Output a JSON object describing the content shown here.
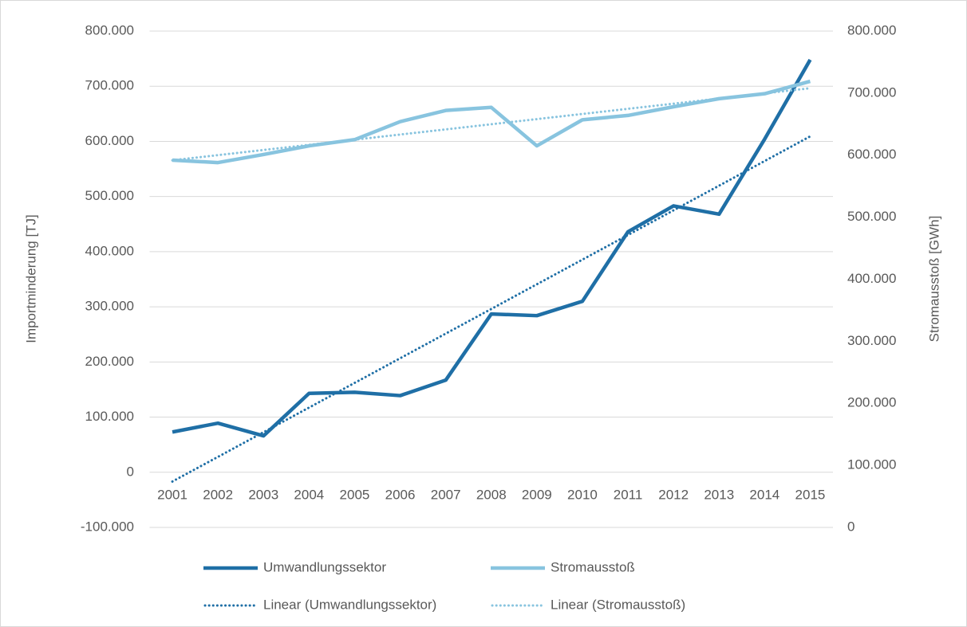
{
  "chart_data": {
    "type": "line",
    "categories": [
      "2001",
      "2002",
      "2003",
      "2004",
      "2005",
      "2006",
      "2007",
      "2008",
      "2009",
      "2010",
      "2011",
      "2012",
      "2013",
      "2014",
      "2015"
    ],
    "y_label": "Importminderung [TJ]",
    "y2_label": "Stromausstoß [GWh]",
    "ylim": [
      -100000,
      800000
    ],
    "yticks": [
      {
        "value": -100000,
        "label": "-100.000"
      },
      0,
      {
        "value": 100000,
        "label": "100.000"
      },
      {
        "value": 200000,
        "label": "200.000"
      },
      {
        "value": 300000,
        "label": "300.000"
      },
      {
        "value": 400000,
        "label": "400.000"
      },
      {
        "value": 500000,
        "label": "500.000"
      },
      {
        "value": 600000,
        "label": "600.000"
      },
      {
        "value": 700000,
        "label": "700.000"
      },
      {
        "value": 800000,
        "label": "800.000"
      }
    ],
    "y2lim": [
      0,
      800000
    ],
    "y2ticks": [
      0,
      {
        "value": 100000,
        "label": "100.000"
      },
      {
        "value": 200000,
        "label": "200.000"
      },
      {
        "value": 300000,
        "label": "300.000"
      },
      {
        "value": 400000,
        "label": "400.000"
      },
      {
        "value": 500000,
        "label": "500.000"
      },
      {
        "value": 600000,
        "label": "600.000"
      },
      {
        "value": 700000,
        "label": "700.000"
      },
      {
        "value": 800000,
        "label": "800.000"
      }
    ],
    "grid": true,
    "legend": "bottom",
    "series": [
      {
        "name": "Umwandlungssektor",
        "color": "#1f6fa6",
        "axis": "y",
        "values": [
          73000,
          89000,
          66000,
          143000,
          145000,
          139000,
          167000,
          287000,
          284000,
          310000,
          436000,
          483000,
          468000,
          604000,
          748000
        ],
        "trendline": {
          "type": "linear",
          "name": "Linear (Umwandlungssektor)"
        }
      },
      {
        "name": "Stromausstoß",
        "color": "#88c4df",
        "axis": "y2",
        "values": [
          592000,
          588000,
          601000,
          615000,
          625000,
          654000,
          672000,
          677000,
          615000,
          657000,
          664000,
          678000,
          691000,
          699000,
          719000
        ],
        "trendline": {
          "type": "linear",
          "name": "Linear (Stromausstoß)"
        }
      }
    ]
  }
}
